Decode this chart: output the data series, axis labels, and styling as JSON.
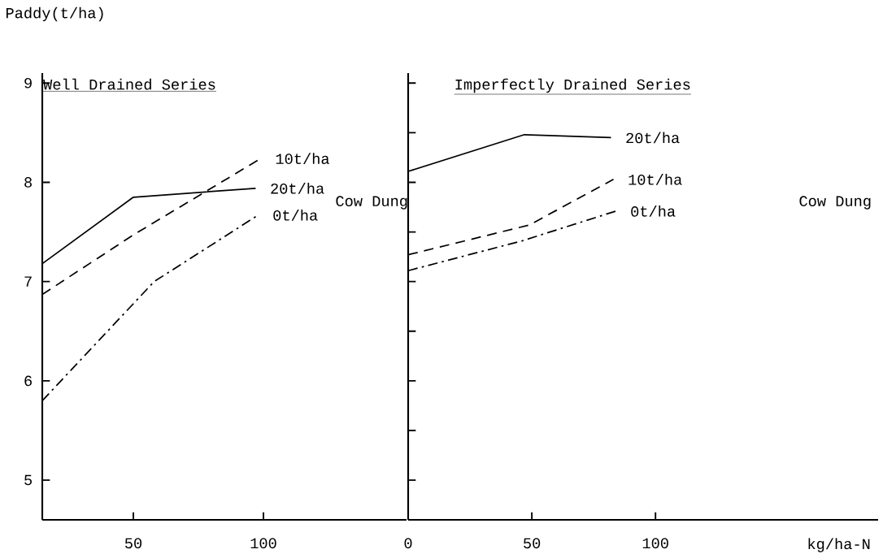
{
  "chart_data": [
    {
      "type": "line",
      "title": "Well Drained Series",
      "ylabel": "Paddy(t/ha)",
      "legend_title": "Cow Dung",
      "xlim": [
        15,
        155
      ],
      "xticks": [
        50,
        100
      ],
      "ylim": [
        4.6,
        9.1
      ],
      "yticks": [
        5,
        6,
        7,
        8,
        9
      ],
      "series": [
        {
          "name": "10t/ha",
          "color": "#000000",
          "line_style": "dashed",
          "x": [
            15,
            50,
            99
          ],
          "values": [
            6.87,
            7.47,
            8.24
          ]
        },
        {
          "name": "20t/ha",
          "color": "#000000",
          "line_style": "solid",
          "x": [
            15,
            50,
            97
          ],
          "values": [
            7.18,
            7.85,
            7.94
          ]
        },
        {
          "name": "0t/ha",
          "color": "#000000",
          "line_style": "dashdot",
          "x": [
            15,
            58,
            98
          ],
          "values": [
            5.8,
            7.0,
            7.67
          ]
        }
      ]
    },
    {
      "type": "line",
      "title": "Imperfectly Drained Series",
      "xlabel": "kg/ha-N",
      "legend_title": "Cow Dung",
      "xlim": [
        0,
        190
      ],
      "xticks": [
        0,
        50,
        100
      ],
      "ylim": [
        4.6,
        9.1
      ],
      "tick_labels": "x",
      "series": [
        {
          "name": "20t/ha",
          "color": "#000000",
          "line_style": "solid",
          "x": [
            0,
            47,
            82
          ],
          "values": [
            8.11,
            8.48,
            8.45
          ]
        },
        {
          "name": "10t/ha",
          "color": "#000000",
          "line_style": "dashed",
          "x": [
            0,
            49,
            83
          ],
          "values": [
            7.27,
            7.57,
            8.03
          ]
        },
        {
          "name": "0t/ha",
          "color": "#000000",
          "line_style": "dashdot",
          "x": [
            0,
            46,
            84
          ],
          "values": [
            7.11,
            7.41,
            7.71
          ]
        }
      ]
    }
  ]
}
